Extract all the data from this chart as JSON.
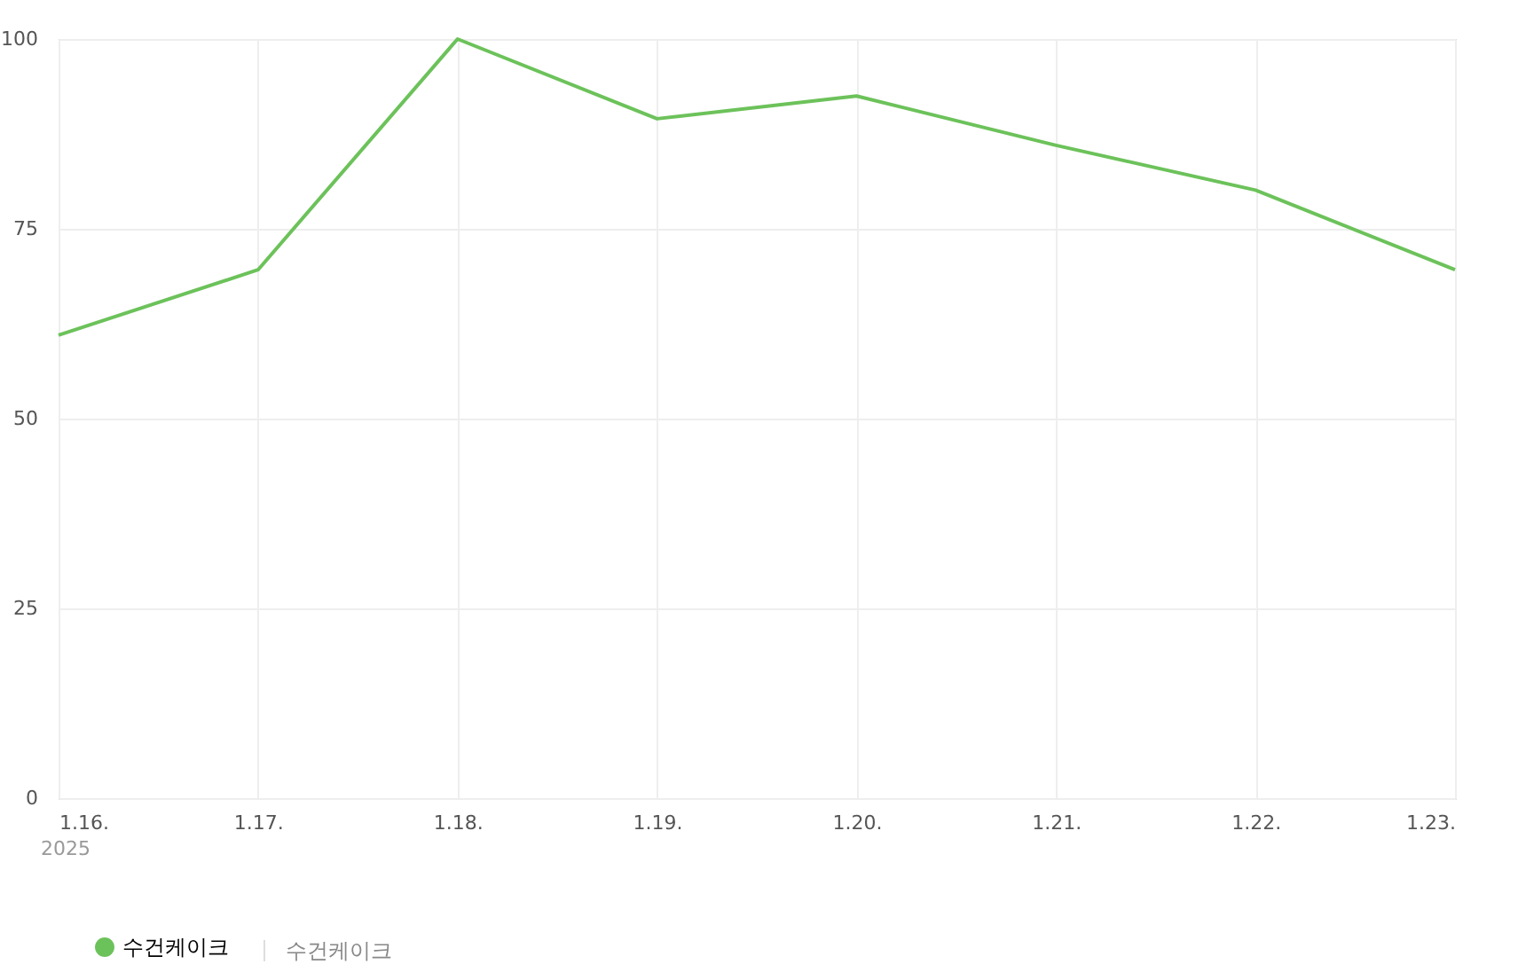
{
  "chart_data": {
    "type": "line",
    "categories": [
      "1.16.",
      "1.17.",
      "1.18.",
      "1.19.",
      "1.20.",
      "1.21.",
      "1.22.",
      "1.23."
    ],
    "series": [
      {
        "name": "수건케이크",
        "color": "#6cc25a",
        "values": [
          61,
          69.6,
          100,
          89.5,
          92.5,
          86,
          80.1,
          69.6
        ]
      }
    ],
    "ylim": [
      0,
      100
    ],
    "yticks": [
      0,
      25,
      50,
      75,
      100
    ],
    "annotations": [
      "2025",
      "수건케이크"
    ],
    "grid": true,
    "legend": "bottom",
    "marker": "none",
    "line_style": "solid"
  }
}
